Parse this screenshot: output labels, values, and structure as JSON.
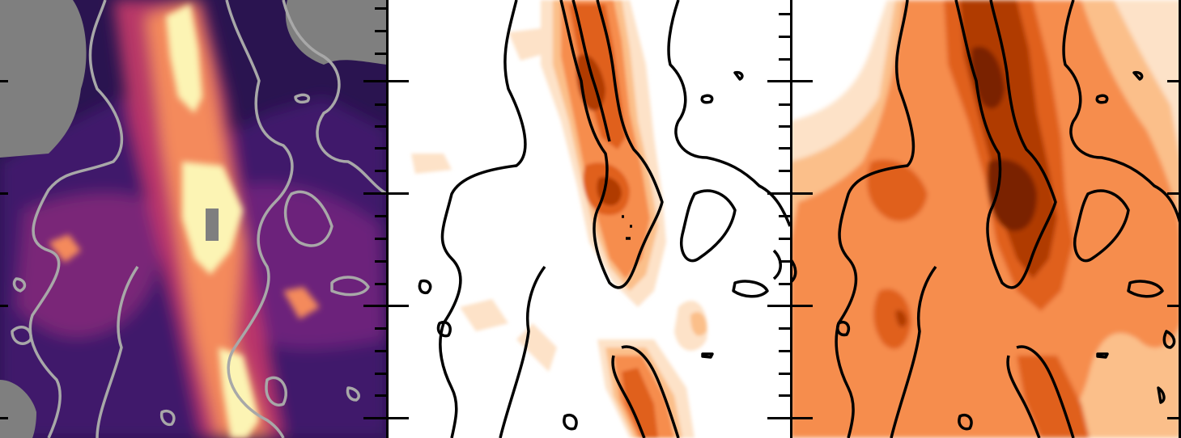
{
  "figure": {
    "panels": [
      {
        "name": "emission-map",
        "colormap": "magma",
        "contour_color": "#a8a8a8",
        "masked_color": "#7f7f7f"
      },
      {
        "name": "filled-contour-map-narrow",
        "colormap": "oranges",
        "contour_color": "#000000"
      },
      {
        "name": "filled-contour-map-broad",
        "colormap": "oranges",
        "contour_color": "#000000"
      }
    ],
    "colors": {
      "magma_dark": "#140c32",
      "magma_purple": "#4a1a78",
      "magma_red": "#c83a6a",
      "magma_orange": "#f48a5c",
      "magma_light": "#fcf4b4",
      "orange_1": "#fde2c8",
      "orange_2": "#fbbf8a",
      "orange_3": "#f68d4e",
      "orange_4": "#e0601f",
      "orange_5": "#b03a06",
      "orange_6": "#7a2406"
    }
  }
}
